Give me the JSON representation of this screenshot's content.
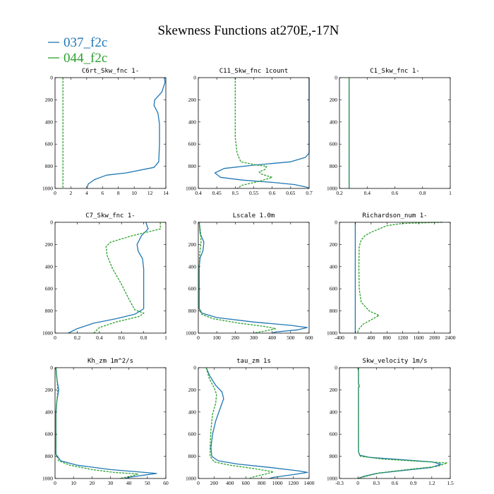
{
  "figure": {
    "title": "Skewness Functions at270E,-17N"
  },
  "legend": [
    {
      "name": "037_f2c",
      "color": "#1f77b4"
    },
    {
      "name": "044_f2c",
      "color": "#2ca02c"
    }
  ],
  "chart_data": [
    {
      "type": "line",
      "title": "C6rt_Skw_fnc   1-",
      "xlim": [
        0,
        14
      ],
      "xticks": [
        0,
        2,
        4,
        6,
        8,
        10,
        12,
        14
      ],
      "ylim": [
        1000,
        0
      ],
      "yticks": [
        0,
        200,
        400,
        600,
        800,
        1000
      ],
      "series": [
        {
          "name": "037_f2c",
          "points": [
            [
              13.8,
              0
            ],
            [
              13.9,
              40
            ],
            [
              13.5,
              130
            ],
            [
              12.6,
              200
            ],
            [
              12.5,
              250
            ],
            [
              13,
              320
            ],
            [
              13.2,
              420
            ],
            [
              13.2,
              600
            ],
            [
              13.1,
              760
            ],
            [
              12.5,
              810
            ],
            [
              9,
              860
            ],
            [
              6.5,
              880
            ],
            [
              5,
              920
            ],
            [
              4.2,
              960
            ],
            [
              4,
              1000
            ]
          ]
        },
        {
          "name": "044_f2c",
          "points": [
            [
              1,
              0
            ],
            [
              1,
              1000
            ]
          ]
        }
      ]
    },
    {
      "type": "line",
      "title": "C11_Skw_fnc   1count",
      "xlim": [
        0.4,
        0.7
      ],
      "xticks": [
        0.4,
        0.45,
        0.5,
        0.55,
        0.6,
        0.65,
        0.7
      ],
      "ylim": [
        1000,
        0
      ],
      "yticks": [
        0,
        200,
        400,
        600,
        800,
        1000
      ],
      "series": [
        {
          "name": "037_f2c",
          "points": [
            [
              0.7,
              0
            ],
            [
              0.7,
              680
            ],
            [
              0.69,
              720
            ],
            [
              0.65,
              760
            ],
            [
              0.55,
              790
            ],
            [
              0.47,
              820
            ],
            [
              0.445,
              860
            ],
            [
              0.46,
              900
            ],
            [
              0.52,
              925
            ],
            [
              0.6,
              945
            ],
            [
              0.66,
              965
            ],
            [
              0.695,
              990
            ],
            [
              0.7,
              1000
            ]
          ]
        },
        {
          "name": "044_f2c",
          "points": [
            [
              0.5,
              0
            ],
            [
              0.5,
              540
            ],
            [
              0.505,
              680
            ],
            [
              0.515,
              760
            ],
            [
              0.56,
              790
            ],
            [
              0.585,
              800
            ],
            [
              0.58,
              830
            ],
            [
              0.565,
              850
            ],
            [
              0.57,
              870
            ],
            [
              0.6,
              900
            ],
            [
              0.56,
              940
            ],
            [
              0.52,
              970
            ],
            [
              0.505,
              1000
            ]
          ]
        }
      ]
    },
    {
      "type": "line",
      "title": "C1_Skw_fnc   1-",
      "xlim": [
        0.2,
        1.0
      ],
      "xticks": [
        0.2,
        0.4,
        0.6,
        0.8,
        1.0
      ],
      "ylim": [
        1000,
        0
      ],
      "yticks": [
        0,
        200,
        400,
        600,
        800,
        1000
      ],
      "series": [
        {
          "name": "037_f2c",
          "points": [
            [
              0.27,
              0
            ],
            [
              0.27,
              1000
            ]
          ]
        },
        {
          "name": "044_f2c",
          "points": [
            [
              0.27,
              0
            ],
            [
              0.27,
              1000
            ]
          ]
        }
      ]
    },
    {
      "type": "line",
      "title": "C7_Skw_fnc   1-",
      "xlim": [
        0.0,
        1.0
      ],
      "xticks": [
        0.0,
        0.2,
        0.4,
        0.6,
        0.8,
        1.0
      ],
      "ylim": [
        1000,
        0
      ],
      "yticks": [
        0,
        200,
        400,
        600,
        800,
        1000
      ],
      "series": [
        {
          "name": "037_f2c",
          "points": [
            [
              0.82,
              0
            ],
            [
              0.84,
              60
            ],
            [
              0.78,
              120
            ],
            [
              0.74,
              200
            ],
            [
              0.75,
              260
            ],
            [
              0.79,
              330
            ],
            [
              0.8,
              420
            ],
            [
              0.8,
              620
            ],
            [
              0.8,
              780
            ],
            [
              0.72,
              830
            ],
            [
              0.55,
              870
            ],
            [
              0.35,
              910
            ],
            [
              0.2,
              960
            ],
            [
              0.12,
              1000
            ]
          ]
        },
        {
          "name": "044_f2c",
          "points": [
            [
              0.95,
              0
            ],
            [
              0.95,
              60
            ],
            [
              0.7,
              120
            ],
            [
              0.5,
              180
            ],
            [
              0.46,
              220
            ],
            [
              0.47,
              300
            ],
            [
              0.52,
              420
            ],
            [
              0.6,
              560
            ],
            [
              0.67,
              700
            ],
            [
              0.72,
              790
            ],
            [
              0.8,
              820
            ],
            [
              0.76,
              850
            ],
            [
              0.55,
              900
            ],
            [
              0.4,
              950
            ],
            [
              0.35,
              1000
            ]
          ]
        }
      ]
    },
    {
      "type": "line",
      "title": "Lscale   1.0m",
      "xlim": [
        0,
        600
      ],
      "xticks": [
        0,
        100,
        200,
        300,
        400,
        500,
        600
      ],
      "ylim": [
        1000,
        0
      ],
      "yticks": [
        0,
        200,
        400,
        600,
        800,
        1000
      ],
      "series": [
        {
          "name": "037_f2c",
          "points": [
            [
              5,
              0
            ],
            [
              10,
              100
            ],
            [
              30,
              180
            ],
            [
              25,
              260
            ],
            [
              10,
              320
            ],
            [
              5,
              400
            ],
            [
              5,
              780
            ],
            [
              20,
              820
            ],
            [
              100,
              860
            ],
            [
              300,
              900
            ],
            [
              500,
              930
            ],
            [
              590,
              950
            ],
            [
              540,
              970
            ],
            [
              420,
              990
            ],
            [
              400,
              1000
            ]
          ]
        },
        {
          "name": "044_f2c",
          "points": [
            [
              5,
              0
            ],
            [
              12,
              80
            ],
            [
              15,
              180
            ],
            [
              8,
              280
            ],
            [
              5,
              400
            ],
            [
              5,
              780
            ],
            [
              18,
              830
            ],
            [
              80,
              870
            ],
            [
              220,
              910
            ],
            [
              360,
              940
            ],
            [
              420,
              960
            ],
            [
              380,
              975
            ],
            [
              300,
              1000
            ]
          ]
        }
      ]
    },
    {
      "type": "line",
      "title": "Richardson_num   1-",
      "xlim": [
        -400,
        2400
      ],
      "xticks": [
        -400,
        0,
        400,
        800,
        1200,
        1600,
        2000,
        2400
      ],
      "ylim": [
        1000,
        0
      ],
      "yticks": [
        0,
        200,
        400,
        600,
        800,
        1000
      ],
      "series": [
        {
          "name": "037_f2c",
          "points": [
            [
              0,
              0
            ],
            [
              0,
              1000
            ]
          ]
        },
        {
          "name": "044_f2c",
          "points": [
            [
              2200,
              0
            ],
            [
              1200,
              10
            ],
            [
              800,
              30
            ],
            [
              600,
              60
            ],
            [
              400,
              90
            ],
            [
              250,
              120
            ],
            [
              150,
              160
            ],
            [
              100,
              220
            ],
            [
              90,
              400
            ],
            [
              100,
              600
            ],
            [
              150,
              720
            ],
            [
              350,
              800
            ],
            [
              600,
              840
            ],
            [
              400,
              880
            ],
            [
              200,
              920
            ],
            [
              100,
              960
            ],
            [
              50,
              1000
            ]
          ]
        }
      ]
    },
    {
      "type": "line",
      "title": "Kh_zm   1m^2/s",
      "xlim": [
        0,
        60
      ],
      "xticks": [
        0,
        10,
        20,
        30,
        40,
        50,
        60
      ],
      "ylim": [
        1000,
        0
      ],
      "yticks": [
        0,
        200,
        400,
        600,
        800,
        1000
      ],
      "series": [
        {
          "name": "037_f2c",
          "points": [
            [
              0.5,
              0
            ],
            [
              1,
              100
            ],
            [
              2,
              200
            ],
            [
              1,
              300
            ],
            [
              0.5,
              400
            ],
            [
              0.5,
              780
            ],
            [
              3,
              840
            ],
            [
              12,
              880
            ],
            [
              30,
              920
            ],
            [
              45,
              940
            ],
            [
              55,
              955
            ],
            [
              48,
              970
            ],
            [
              40,
              990
            ],
            [
              38,
              1000
            ]
          ]
        },
        {
          "name": "044_f2c",
          "points": [
            [
              0.5,
              0
            ],
            [
              1,
              100
            ],
            [
              1.5,
              200
            ],
            [
              1,
              300
            ],
            [
              0.5,
              400
            ],
            [
              0.5,
              780
            ],
            [
              2,
              840
            ],
            [
              8,
              880
            ],
            [
              20,
              920
            ],
            [
              32,
              945
            ],
            [
              45,
              960
            ],
            [
              42,
              975
            ],
            [
              35,
              1000
            ]
          ]
        }
      ]
    },
    {
      "type": "line",
      "title": "tau_zm   1s",
      "xlim": [
        0,
        1400
      ],
      "xticks": [
        0,
        200,
        400,
        600,
        800,
        1000,
        1200,
        1400
      ],
      "ylim": [
        1000,
        0
      ],
      "yticks": [
        0,
        200,
        400,
        600,
        800,
        1000
      ],
      "series": [
        {
          "name": "037_f2c",
          "points": [
            [
              100,
              0
            ],
            [
              150,
              80
            ],
            [
              220,
              160
            ],
            [
              300,
              220
            ],
            [
              320,
              280
            ],
            [
              280,
              360
            ],
            [
              220,
              480
            ],
            [
              180,
              600
            ],
            [
              160,
              720
            ],
            [
              170,
              800
            ],
            [
              250,
              840
            ],
            [
              500,
              870
            ],
            [
              900,
              900
            ],
            [
              1250,
              930
            ],
            [
              1380,
              945
            ],
            [
              1200,
              965
            ],
            [
              950,
              990
            ],
            [
              900,
              1000
            ]
          ]
        },
        {
          "name": "044_f2c",
          "points": [
            [
              100,
              0
            ],
            [
              140,
              100
            ],
            [
              200,
              180
            ],
            [
              230,
              240
            ],
            [
              220,
              320
            ],
            [
              180,
              420
            ],
            [
              160,
              560
            ],
            [
              150,
              700
            ],
            [
              150,
              800
            ],
            [
              200,
              850
            ],
            [
              400,
              880
            ],
            [
              700,
              910
            ],
            [
              950,
              940
            ],
            [
              850,
              960
            ],
            [
              700,
              985
            ],
            [
              650,
              1000
            ]
          ]
        }
      ]
    },
    {
      "type": "line",
      "title": "Skw_velocity   1m/s",
      "xlim": [
        -0.3,
        1.5
      ],
      "xticks": [
        -0.3,
        0.0,
        0.3,
        0.6,
        0.9,
        1.2,
        1.5
      ],
      "ylim": [
        1000,
        0
      ],
      "yticks": [
        0,
        200,
        400,
        600,
        800,
        1000
      ],
      "series": [
        {
          "name": "037_f2c",
          "points": [
            [
              0.01,
              0
            ],
            [
              0.01,
              140
            ],
            [
              0.02,
              160
            ],
            [
              0.01,
              180
            ],
            [
              0.01,
              760
            ],
            [
              0.03,
              790
            ],
            [
              0.2,
              810
            ],
            [
              0.7,
              830
            ],
            [
              1.2,
              850
            ],
            [
              1.35,
              870
            ],
            [
              1.2,
              900
            ],
            [
              0.7,
              930
            ],
            [
              0.3,
              955
            ],
            [
              0.1,
              980
            ],
            [
              0,
              1000
            ]
          ]
        },
        {
          "name": "044_f2c",
          "points": [
            [
              0.01,
              0
            ],
            [
              0.01,
              150
            ],
            [
              0.03,
              165
            ],
            [
              0.01,
              180
            ],
            [
              0.01,
              760
            ],
            [
              0.04,
              800
            ],
            [
              0.4,
              825
            ],
            [
              1,
              845
            ],
            [
              1.45,
              860
            ],
            [
              1.3,
              890
            ],
            [
              0.8,
              920
            ],
            [
              0.35,
              950
            ],
            [
              0.1,
              985
            ],
            [
              0,
              1000
            ]
          ]
        }
      ]
    }
  ]
}
